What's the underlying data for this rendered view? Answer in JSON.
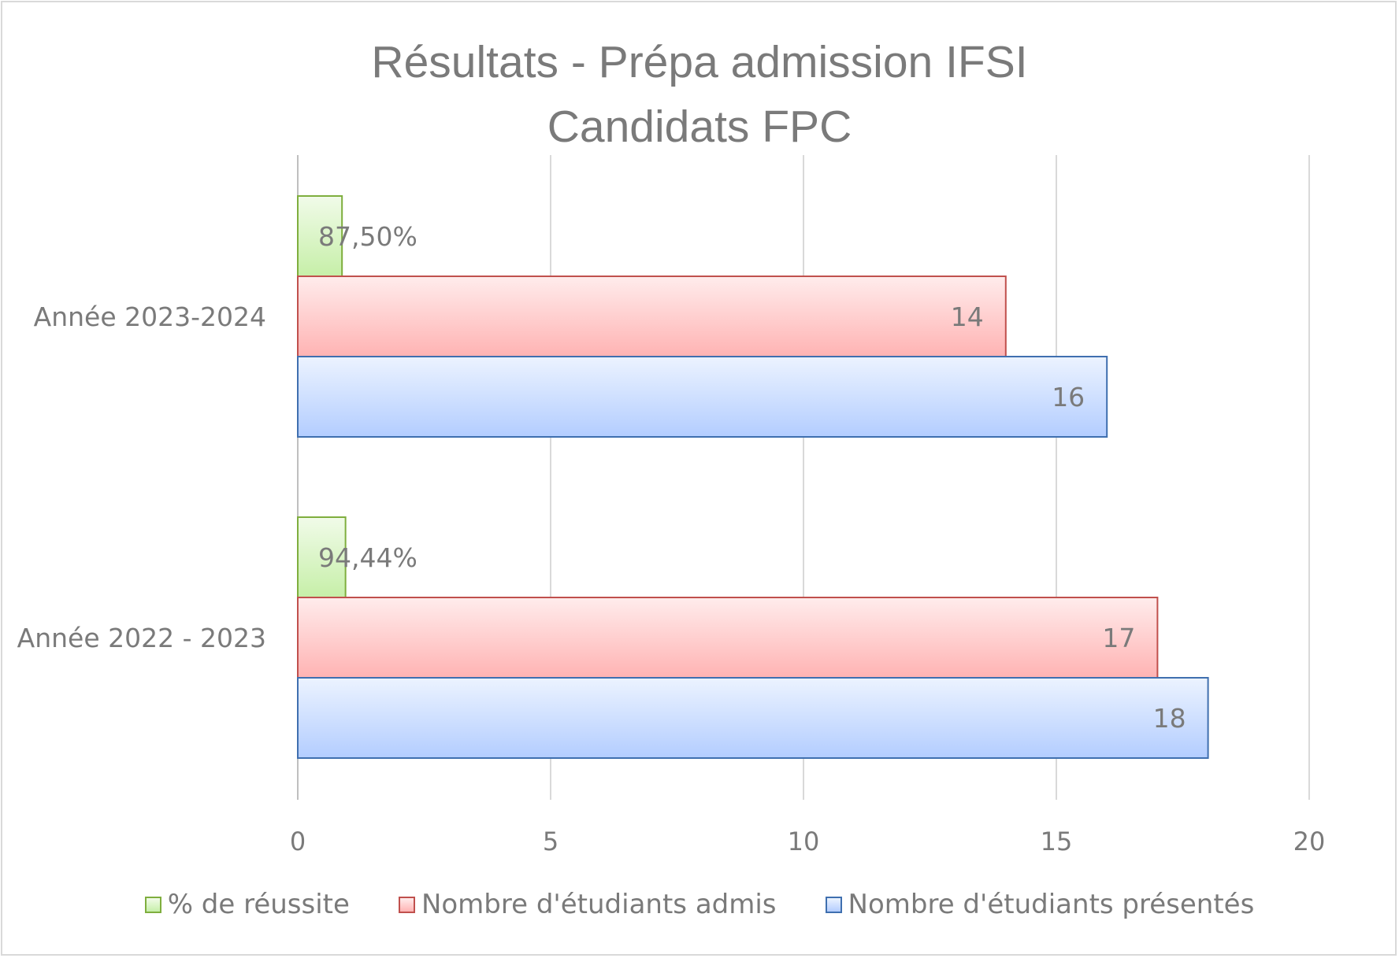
{
  "chart_data": {
    "type": "bar",
    "orientation": "horizontal",
    "title": [
      "Résultats - Prépa admission IFSI",
      "Candidats FPC"
    ],
    "categories": [
      "Année 2023-2024",
      "Année 2022 - 2023"
    ],
    "series": [
      {
        "name": "% de réussite",
        "values": [
          0.875,
          0.9444
        ],
        "labels": [
          "87,50%",
          "94,44%"
        ],
        "color": "#c6efa8",
        "border": "#7fae3e"
      },
      {
        "name": "Nombre d'étudiants admis",
        "values": [
          14,
          17
        ],
        "labels": [
          "14",
          "17"
        ],
        "color": "#ffb3b3",
        "border": "#c0504d"
      },
      {
        "name": "Nombre d'étudiants présentés",
        "values": [
          16,
          18
        ],
        "labels": [
          "16",
          "18"
        ],
        "color": "#b3cdff",
        "border": "#3f6faf"
      }
    ],
    "xlim": [
      0,
      20
    ],
    "xticks": [
      0,
      5,
      10,
      15,
      20
    ],
    "grid": true,
    "legend_position": "bottom"
  }
}
